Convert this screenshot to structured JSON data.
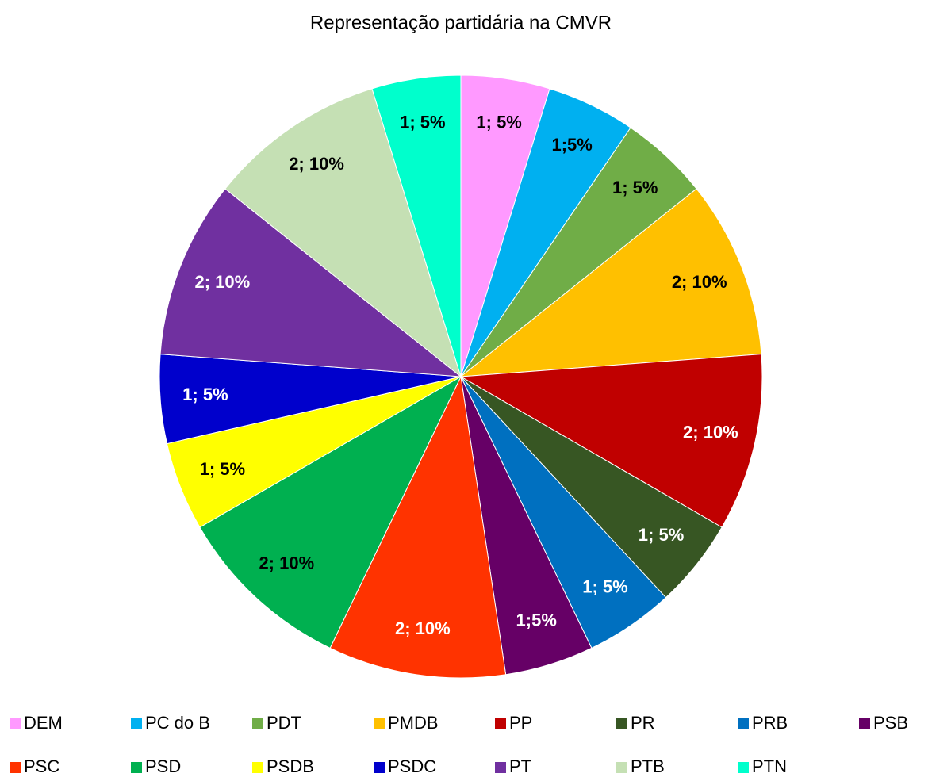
{
  "chart_data": {
    "type": "pie",
    "title": "Representação partidária na CMVR",
    "categories": [
      "DEM",
      "PC do B",
      "PDT",
      "PMDB",
      "PP",
      "PR",
      "PRB",
      "PSB",
      "PSC",
      "PSD",
      "PSDB",
      "PSDC",
      "PT",
      "PTB",
      "PTN"
    ],
    "values": [
      1,
      1,
      1,
      2,
      2,
      1,
      1,
      1,
      2,
      2,
      1,
      1,
      2,
      2,
      1
    ],
    "value_labels": [
      "1; 5%",
      "1;5%",
      "1; 5%",
      "2; 10%",
      "2; 10%",
      "1; 5%",
      "1; 5%",
      "1;5%",
      "2; 10%",
      "2; 10%",
      "1; 5%",
      "1; 5%",
      "2; 10%",
      "2; 10%",
      "1; 5%"
    ],
    "colors": [
      "#ff99ff",
      "#00b0f0",
      "#70ad47",
      "#ffc000",
      "#c00000",
      "#375623",
      "#0070c0",
      "#660066",
      "#ff3300",
      "#00b050",
      "#ffff00",
      "#0000cc",
      "#7030a0",
      "#c5e0b4",
      "#00ffcc"
    ],
    "legend": "bottom"
  }
}
